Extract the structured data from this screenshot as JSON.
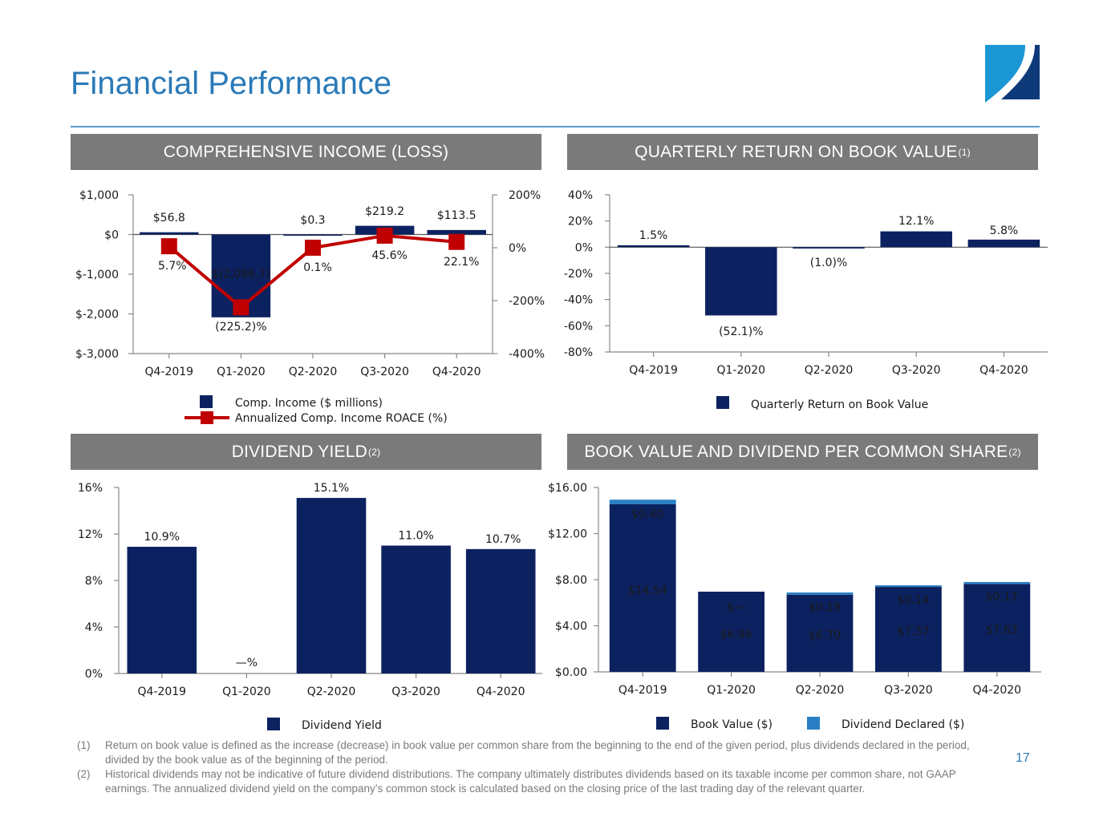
{
  "page": {
    "title": "Financial Performance",
    "page_number": "17",
    "logo": "company-logo",
    "colors": {
      "title": "#2a7ab8",
      "header_bg": "#7a7a7a",
      "navy": "#0c2260",
      "light_blue": "#2a7fc4",
      "red": "#c00000",
      "axis": "#888888"
    }
  },
  "panels": {
    "comp_income": {
      "title": "COMPREHENSIVE INCOME (LOSS)",
      "sup": ""
    },
    "return_bv": {
      "title": "QUARTERLY RETURN ON BOOK VALUE",
      "sup": "(1)"
    },
    "div_yield": {
      "title": "DIVIDEND YIELD",
      "sup": "(2)"
    },
    "bv_div": {
      "title": "BOOK VALUE AND DIVIDEND PER COMMON SHARE",
      "sup": "(2)"
    }
  },
  "chart_data": [
    {
      "id": "comp_income",
      "type": "bar",
      "title": "COMPREHENSIVE INCOME (LOSS)",
      "categories": [
        "Q4-2019",
        "Q1-2020",
        "Q2-2020",
        "Q3-2020",
        "Q4-2020"
      ],
      "series": [
        {
          "name": "Comp. Income ($ millions)",
          "type": "bar",
          "axis": "left",
          "values": [
            56.8,
            -2086.7,
            0.3,
            219.2,
            113.5
          ],
          "labels": [
            "$56.8",
            "$(2,086.7)",
            "$0.3",
            "$219.2",
            "$113.5"
          ]
        },
        {
          "name": "Annualized Comp. Income ROACE (%)",
          "type": "line",
          "axis": "right",
          "values": [
            5.7,
            -225.2,
            0.1,
            45.6,
            22.1
          ],
          "labels": [
            "5.7%",
            "(225.2)%",
            "0.1%",
            "45.6%",
            "22.1%"
          ]
        }
      ],
      "y_left": {
        "range": [
          -3000,
          1000
        ],
        "ticks": [
          1000,
          0,
          -1000,
          -2000,
          -3000
        ],
        "tick_labels": [
          "$1,000",
          "$0",
          "$-1,000",
          "$-2,000",
          "$-3,000"
        ]
      },
      "y_right": {
        "range": [
          -400,
          200
        ],
        "ticks": [
          200,
          0,
          -200,
          -400
        ],
        "tick_labels": [
          "200%",
          "0%",
          "-200%",
          "-400%"
        ]
      },
      "legend": [
        "Comp. Income ($ millions)",
        "Annualized Comp. Income ROACE (%)"
      ],
      "legend_position": "bottom"
    },
    {
      "id": "return_bv",
      "type": "bar",
      "title": "QUARTERLY RETURN ON BOOK VALUE",
      "categories": [
        "Q4-2019",
        "Q1-2020",
        "Q2-2020",
        "Q3-2020",
        "Q4-2020"
      ],
      "series": [
        {
          "name": "Quarterly Return on Book Value",
          "values": [
            1.5,
            -52.1,
            -1.0,
            12.1,
            5.8
          ],
          "labels": [
            "1.5%",
            "(52.1)%",
            "(1.0)%",
            "12.1%",
            "5.8%"
          ]
        }
      ],
      "y": {
        "range": [
          -80,
          40
        ],
        "ticks": [
          40,
          20,
          0,
          -20,
          -40,
          -60,
          -80
        ],
        "tick_labels": [
          "40%",
          "20%",
          "0%",
          "-20%",
          "-40%",
          "-60%",
          "-80%"
        ]
      },
      "legend": [
        "Quarterly Return on Book Value"
      ],
      "legend_position": "bottom"
    },
    {
      "id": "div_yield",
      "type": "bar",
      "title": "DIVIDEND YIELD",
      "categories": [
        "Q4-2019",
        "Q1-2020",
        "Q2-2020",
        "Q3-2020",
        "Q4-2020"
      ],
      "series": [
        {
          "name": "Dividend Yield",
          "values": [
            10.9,
            0,
            15.1,
            11.0,
            10.7
          ],
          "labels": [
            "10.9%",
            "—%",
            "15.1%",
            "11.0%",
            "10.7%"
          ]
        }
      ],
      "y": {
        "range": [
          0,
          16
        ],
        "ticks": [
          16,
          12,
          8,
          4,
          0
        ],
        "tick_labels": [
          "16%",
          "12%",
          "8%",
          "4%",
          "0%"
        ]
      },
      "legend": [
        "Dividend Yield"
      ],
      "legend_position": "bottom"
    },
    {
      "id": "bv_div",
      "type": "bar",
      "stacked": true,
      "title": "BOOK VALUE AND DIVIDEND PER COMMON SHARE",
      "categories": [
        "Q4-2019",
        "Q1-2020",
        "Q2-2020",
        "Q3-2020",
        "Q4-2020"
      ],
      "series": [
        {
          "name": "Book Value ($)",
          "values": [
            14.54,
            6.96,
            6.7,
            7.37,
            7.63
          ],
          "labels": [
            "$14.54",
            "$6.96",
            "$6.70",
            "$7.37",
            "$7.63"
          ]
        },
        {
          "name": "Dividend Declared ($)",
          "values": [
            0.4,
            0,
            0.19,
            0.14,
            0.17
          ],
          "labels": [
            "$0.40",
            "$—",
            "$0.19",
            "$0.14",
            "$0.17"
          ]
        }
      ],
      "y": {
        "range": [
          0,
          16
        ],
        "ticks": [
          16,
          12,
          8,
          4,
          0
        ],
        "tick_labels": [
          "$16.00",
          "$12.00",
          "$8.00",
          "$4.00",
          "$0.00"
        ]
      },
      "legend": [
        "Book Value ($)",
        "Dividend Declared ($)"
      ],
      "legend_position": "bottom"
    }
  ],
  "footnotes": [
    {
      "num": "(1)",
      "text": "Return on book value is defined as the increase (decrease) in book value per common share from the beginning to the end of the given period, plus dividends declared in the period, divided by the book value as of the beginning of the period."
    },
    {
      "num": "(2)",
      "text": "Historical dividends may not be indicative of future dividend distributions.  The company ultimately distributes dividends based on its taxable income per common share, not GAAP earnings. The annualized dividend yield on the company’s common stock is calculated based on the closing price of the last trading day of the relevant quarter."
    }
  ]
}
